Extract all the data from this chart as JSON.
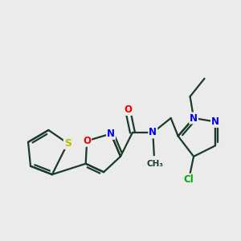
{
  "background_color": "#EBEBEB",
  "bond_color": "#1a3a2a",
  "bond_width": 1.6,
  "atom_colors": {
    "N": "#0000EE",
    "O": "#EE0000",
    "S": "#BBBB00",
    "Cl": "#00AA00",
    "C": "#1a3a2a"
  },
  "font_size": 8.5,
  "fig_width": 3.0,
  "fig_height": 3.0,
  "dpi": 100,
  "xlim": [
    0,
    10
  ],
  "ylim": [
    0,
    10
  ]
}
